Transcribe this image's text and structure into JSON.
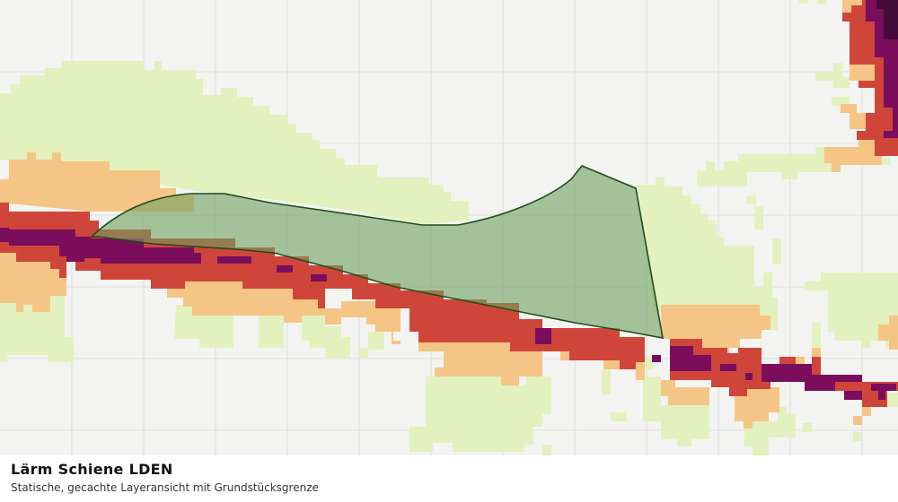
{
  "caption": {
    "title": "Lärm Schiene LDEN",
    "subtitle": "Statische, gecachte Layeransicht mit Grundstücksgrenze"
  },
  "colors": {
    "background": "#f3f4f2",
    "grid": "#dcdddb",
    "noise_low": "#e2f1be",
    "noise_medium": "#f4c584",
    "noise_high": "#d0453a",
    "noise_very_high": "#7a0e5c",
    "noise_extreme": "#430b38",
    "parcel_fill": "#6fa05f",
    "parcel_stroke": "#1f4d1a"
  }
}
